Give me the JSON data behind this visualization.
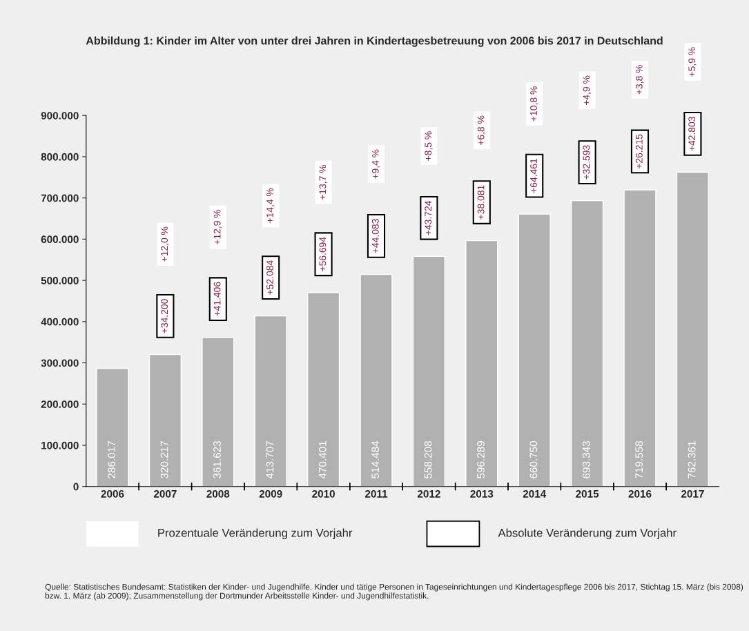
{
  "chart_data": {
    "type": "bar",
    "title": "Abbildung 1: Kinder im Alter von unter drei Jahren in Kindertagesbetreuung von 2006 bis 2017 in Deutschland",
    "categories": [
      "2006",
      "2007",
      "2008",
      "2009",
      "2010",
      "2011",
      "2012",
      "2013",
      "2014",
      "2015",
      "2016",
      "2017"
    ],
    "values": [
      286017,
      320217,
      361623,
      413707,
      470401,
      514484,
      558208,
      596289,
      660750,
      693343,
      719558,
      762361
    ],
    "value_labels": [
      "286.017",
      "320.217",
      "361.623",
      "413.707",
      "470.401",
      "514.484",
      "558.208",
      "596.289",
      "660.750",
      "693.343",
      "719.558",
      "762.361"
    ],
    "color": "#b1b1b1",
    "ylim": [
      0,
      900000
    ],
    "yticks": [
      {
        "value": 0,
        "label": "0"
      },
      {
        "value": 100000,
        "label": "100.000"
      },
      {
        "value": 200000,
        "label": "200.000"
      },
      {
        "value": 300000,
        "label": "300.000"
      },
      {
        "value": 400000,
        "label": "400.000"
      },
      {
        "value": 500000,
        "label": "500.000"
      },
      {
        "value": 600000,
        "label": "600.000"
      },
      {
        "value": 700000,
        "label": "700.000"
      },
      {
        "value": 800000,
        "label": "800.000"
      },
      {
        "value": 900000,
        "label": "900.000"
      }
    ],
    "annotations": [
      "Prozentuale Veränderung zum Vorjahr",
      "Absolute Veränderung zum Vorjahr",
      "Quelle: Statistisches Bundesamt: Statistiken der Kinder- und Jugendhilfe. Kinder und tätige Personen in Tageseinrichtungen und Kindertagespflege 2006 bis 2017, Stichtag 15. März (bis 2008) bzw. 1. März (ab 2009); Zusammenstellung der Dortmunder Arbeitsstelle Kinder- und Jugendhilfestatistik.",
      "+12,0 %",
      "+12,9 %",
      "+14,4 %",
      "+13,7 %",
      "+9,4 %",
      "+8,5 %",
      "+6,8 %",
      "+10,8 %",
      "+4,9 %",
      "+3,8 %",
      "+5,9 %",
      {
        "text": "+34.200",
        "x": "2007",
        "y": 320217
      },
      {
        "text": "+41.406",
        "x": "2008",
        "y": 361623
      },
      {
        "text": "+52.084",
        "x": "2009",
        "y": 413707
      },
      {
        "text": "+56.694",
        "x": "2010",
        "y": 470401
      },
      {
        "text": "+44.083",
        "x": "2011",
        "y": 514484
      },
      {
        "text": "+43.724",
        "x": "2012",
        "y": 558208
      },
      {
        "text": "+38.081",
        "x": "2013",
        "y": 596289
      },
      {
        "text": "+64.461",
        "x": "2014",
        "y": 660750
      },
      {
        "text": "+32.593",
        "x": "2015",
        "y": 693343
      },
      {
        "text": "+26.215",
        "x": "2016",
        "y": 719558
      },
      {
        "text": "+42.803",
        "x": "2017",
        "y": 762361
      }
    ],
    "grid": false
  }
}
